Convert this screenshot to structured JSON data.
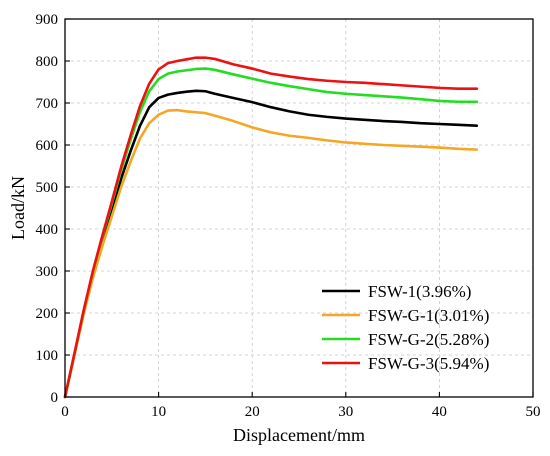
{
  "chart_data": {
    "type": "line",
    "title": "",
    "xlabel": "Displacement/mm",
    "ylabel": "Load/kN",
    "xlim": [
      0,
      50
    ],
    "ylim": [
      0,
      900
    ],
    "xticks": [
      0,
      10,
      20,
      30,
      40,
      50
    ],
    "yticks": [
      0,
      100,
      200,
      300,
      400,
      500,
      600,
      700,
      800,
      900
    ],
    "grid": true,
    "legend_position": "bottom-right",
    "series": [
      {
        "name": "FSW-1(3.96%)",
        "color": "#000000",
        "x": [
          0,
          1,
          2,
          3,
          4,
          5,
          6,
          7,
          8,
          9,
          10,
          11,
          12,
          13,
          14,
          15,
          16,
          18,
          20,
          22,
          24,
          26,
          28,
          30,
          32,
          34,
          36,
          38,
          40,
          42,
          44
        ],
        "y": [
          0,
          100,
          200,
          292,
          370,
          445,
          520,
          585,
          645,
          690,
          712,
          720,
          724,
          727,
          729,
          728,
          722,
          712,
          702,
          690,
          680,
          672,
          667,
          663,
          660,
          657,
          655,
          652,
          650,
          648,
          646
        ]
      },
      {
        "name": "FSW-G-1(3.01%)",
        "color": "#f5a623",
        "x": [
          0,
          1,
          2,
          3,
          4,
          5,
          6,
          7,
          8,
          9,
          10,
          11,
          12,
          13,
          14,
          15,
          16,
          18,
          20,
          22,
          24,
          26,
          28,
          30,
          32,
          34,
          36,
          38,
          40,
          42,
          44
        ],
        "y": [
          0,
          98,
          198,
          285,
          360,
          430,
          500,
          560,
          615,
          652,
          672,
          682,
          683,
          680,
          678,
          676,
          670,
          657,
          642,
          630,
          622,
          617,
          611,
          606,
          603,
          600,
          598,
          596,
          594,
          591,
          589
        ]
      },
      {
        "name": "FSW-G-2(5.28%)",
        "color": "#22dd22",
        "x": [
          0,
          1,
          2,
          3,
          4,
          5,
          6,
          7,
          8,
          9,
          10,
          11,
          12,
          13,
          14,
          15,
          16,
          18,
          20,
          22,
          24,
          26,
          28,
          30,
          32,
          34,
          36,
          38,
          40,
          42,
          44
        ],
        "y": [
          0,
          102,
          205,
          300,
          382,
          460,
          540,
          612,
          678,
          728,
          757,
          770,
          775,
          778,
          781,
          782,
          779,
          768,
          758,
          748,
          740,
          733,
          726,
          722,
          719,
          716,
          713,
          709,
          705,
          703,
          703
        ]
      },
      {
        "name": "FSW-G-3(5.94%)",
        "color": "#ee1111",
        "x": [
          0,
          1,
          2,
          3,
          4,
          5,
          6,
          7,
          8,
          9,
          10,
          11,
          12,
          13,
          14,
          15,
          16,
          18,
          20,
          22,
          24,
          26,
          28,
          30,
          32,
          34,
          36,
          38,
          40,
          42,
          44
        ],
        "y": [
          0,
          103,
          207,
          302,
          385,
          465,
          548,
          622,
          692,
          746,
          780,
          795,
          800,
          804,
          808,
          808,
          805,
          792,
          782,
          770,
          763,
          757,
          753,
          750,
          748,
          745,
          742,
          739,
          736,
          734,
          734
        ]
      }
    ]
  }
}
